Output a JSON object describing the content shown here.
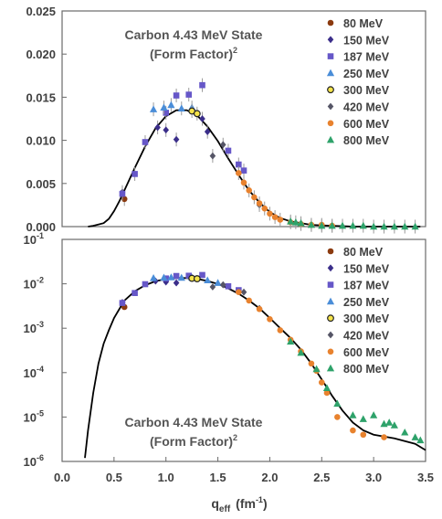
{
  "chart_data": [
    {
      "type": "scatter",
      "title_line1": "Carbon 4.43 MeV State",
      "title_line2": "(Form Factor)",
      "title_sup": "2",
      "yscale": "linear",
      "xlim": [
        0.0,
        3.5
      ],
      "ylim": [
        0.0,
        0.025
      ],
      "ytick_labels": [
        "0.000",
        "0.005",
        "0.010",
        "0.015",
        "0.020",
        "0.025"
      ],
      "legend_position": "top-right",
      "series": [
        {
          "name": "80 MeV",
          "color": "#8B3A0F",
          "marker": "circle",
          "points": [
            [
              0.6,
              0.0032
            ]
          ]
        },
        {
          "name": "150 MeV",
          "color": "#3B2E8A",
          "marker": "diamond",
          "points": [
            [
              0.58,
              0.004
            ],
            [
              0.92,
              0.0115
            ],
            [
              1.0,
              0.0112
            ],
            [
              1.1,
              0.0101
            ],
            [
              1.35,
              0.0125
            ],
            [
              1.4,
              0.011
            ]
          ]
        },
        {
          "name": "187 MeV",
          "color": "#6657C8",
          "marker": "square",
          "points": [
            [
              0.58,
              0.0038
            ],
            [
              0.7,
              0.0061
            ],
            [
              0.8,
              0.0098
            ],
            [
              1.0,
              0.0132
            ],
            [
              1.1,
              0.0152
            ],
            [
              1.22,
              0.0153
            ],
            [
              1.35,
              0.0164
            ],
            [
              1.6,
              0.0088
            ],
            [
              1.7,
              0.0072
            ],
            [
              1.75,
              0.0065
            ]
          ]
        },
        {
          "name": "250 MeV",
          "color": "#4A8DD8",
          "marker": "triangle",
          "points": [
            [
              0.88,
              0.0136
            ],
            [
              0.98,
              0.0138
            ],
            [
              1.05,
              0.0141
            ],
            [
              1.15,
              0.0137
            ],
            [
              1.25,
              0.0138
            ]
          ]
        },
        {
          "name": "300 MeV",
          "color": "#2A2A2A",
          "marker": "circle-yellow",
          "points": [
            [
              1.25,
              0.0134
            ],
            [
              1.3,
              0.0131
            ]
          ]
        },
        {
          "name": "420 MeV",
          "color": "#555566",
          "marker": "diamond",
          "points": [
            [
              1.45,
              0.0082
            ],
            [
              1.55,
              0.0095
            ],
            [
              1.9,
              0.0025
            ]
          ]
        },
        {
          "name": "600 MeV",
          "color": "#E8822E",
          "marker": "circle",
          "points": [
            [
              1.7,
              0.0062
            ],
            [
              1.75,
              0.0051
            ],
            [
              1.8,
              0.0042
            ],
            [
              1.85,
              0.0034
            ],
            [
              1.9,
              0.0027
            ],
            [
              1.95,
              0.0021
            ],
            [
              2.0,
              0.0015
            ],
            [
              2.05,
              0.0011
            ],
            [
              2.1,
              0.0008
            ],
            [
              2.2,
              0.0005
            ],
            [
              2.3,
              0.0003
            ],
            [
              2.4,
              0.0002
            ],
            [
              2.5,
              0.0002
            ],
            [
              2.6,
              0.0001
            ]
          ]
        },
        {
          "name": "800 MeV",
          "color": "#2EA26A",
          "marker": "triangle",
          "points": [
            [
              2.2,
              0.0006
            ],
            [
              2.25,
              0.0005
            ],
            [
              2.3,
              0.0004
            ],
            [
              2.4,
              0.0002
            ],
            [
              2.5,
              0.0001
            ],
            [
              2.6,
              0.0001
            ],
            [
              2.7,
              0.0001
            ],
            [
              2.8,
              0.0001
            ],
            [
              2.9,
              0.0001
            ],
            [
              3.0,
              0.0
            ],
            [
              3.1,
              0.0
            ],
            [
              3.2,
              0.0
            ],
            [
              3.3,
              0.0
            ],
            [
              3.4,
              0.0
            ]
          ]
        }
      ],
      "curve": [
        [
          0.25,
          0.0
        ],
        [
          0.3,
          0.0001
        ],
        [
          0.4,
          0.0004
        ],
        [
          0.45,
          0.0009
        ],
        [
          0.5,
          0.0018
        ],
        [
          0.55,
          0.0029
        ],
        [
          0.6,
          0.0042
        ],
        [
          0.7,
          0.0068
        ],
        [
          0.8,
          0.0093
        ],
        [
          0.9,
          0.0114
        ],
        [
          1.0,
          0.0128
        ],
        [
          1.1,
          0.0135
        ],
        [
          1.2,
          0.0135
        ],
        [
          1.3,
          0.0129
        ],
        [
          1.4,
          0.0116
        ],
        [
          1.5,
          0.0099
        ],
        [
          1.6,
          0.0079
        ],
        [
          1.7,
          0.006
        ],
        [
          1.8,
          0.0042
        ],
        [
          1.9,
          0.0028
        ],
        [
          2.0,
          0.0017
        ],
        [
          2.1,
          0.001
        ],
        [
          2.2,
          0.0006
        ],
        [
          2.4,
          0.0002
        ],
        [
          2.6,
          0.0001
        ],
        [
          2.8,
          0.0
        ],
        [
          3.0,
          0.0
        ],
        [
          3.2,
          0.0
        ],
        [
          3.45,
          0.0
        ]
      ]
    },
    {
      "type": "scatter",
      "title_line1": "Carbon 4.43 MeV State",
      "title_line2": "(Form Factor)",
      "title_sup": "2",
      "yscale": "log",
      "xlim": [
        0.0,
        3.5
      ],
      "ylim": [
        1e-06,
        0.1
      ],
      "ytick_base": "10",
      "ytick_exponents": [
        "-1",
        "-2",
        "-3",
        "-4",
        "-5",
        "-6"
      ],
      "xtick_labels": [
        "0.0",
        "0.5",
        "1.0",
        "1.5",
        "2.0",
        "2.5",
        "3.0",
        "3.5"
      ],
      "xlabel_main": "q",
      "xlabel_sub": "eff",
      "xlabel_unit_open": "(fm",
      "xlabel_unit_sup": "-1",
      "xlabel_unit_close": ")",
      "legend_position": "top-right",
      "series": [
        {
          "name": "80 MeV",
          "color": "#8B3A0F",
          "marker": "circle",
          "points": [
            [
              0.6,
              0.003
            ]
          ]
        },
        {
          "name": "150 MeV",
          "color": "#3B2E8A",
          "marker": "diamond",
          "points": [
            [
              0.58,
              0.0038
            ],
            [
              0.9,
              0.0115
            ],
            [
              1.0,
              0.011
            ],
            [
              1.1,
              0.0105
            ]
          ]
        },
        {
          "name": "187 MeV",
          "color": "#6657C8",
          "marker": "square",
          "points": [
            [
              0.58,
              0.0037
            ],
            [
              0.7,
              0.0062
            ],
            [
              0.8,
              0.0098
            ],
            [
              1.0,
              0.0132
            ],
            [
              1.1,
              0.015
            ],
            [
              1.22,
              0.0152
            ],
            [
              1.35,
              0.0158
            ],
            [
              1.6,
              0.0088
            ],
            [
              1.7,
              0.0072
            ]
          ]
        },
        {
          "name": "250 MeV",
          "color": "#4A8DD8",
          "marker": "triangle",
          "points": [
            [
              0.88,
              0.0135
            ],
            [
              0.98,
              0.0138
            ],
            [
              1.05,
              0.014
            ],
            [
              1.15,
              0.0137
            ],
            [
              1.25,
              0.0138
            ],
            [
              1.4,
              0.012
            ],
            [
              1.5,
              0.0105
            ]
          ]
        },
        {
          "name": "300 MeV",
          "color": "#2A2A2A",
          "marker": "circle-yellow",
          "points": [
            [
              1.25,
              0.0133
            ],
            [
              1.3,
              0.013
            ]
          ]
        },
        {
          "name": "420 MeV",
          "color": "#555566",
          "marker": "diamond",
          "points": [
            [
              1.45,
              0.0085
            ],
            [
              1.55,
              0.0095
            ],
            [
              1.75,
              0.0065
            ],
            [
              1.9,
              0.0028
            ]
          ]
        },
        {
          "name": "600 MeV",
          "color": "#E8822E",
          "marker": "circle",
          "points": [
            [
              1.7,
              0.0065
            ],
            [
              1.8,
              0.0042
            ],
            [
              1.9,
              0.0027
            ],
            [
              2.0,
              0.0016
            ],
            [
              2.1,
              0.0009
            ],
            [
              2.2,
              0.00055
            ],
            [
              2.3,
              0.0003
            ],
            [
              2.4,
              0.00016
            ],
            [
              2.45,
              0.00011
            ],
            [
              2.5,
              6e-05
            ],
            [
              2.55,
              3.5e-05
            ],
            [
              2.65,
              1e-05
            ],
            [
              2.8,
              5e-06
            ],
            [
              2.9,
              4e-06
            ],
            [
              3.1,
              3.5e-06
            ]
          ]
        },
        {
          "name": "800 MeV",
          "color": "#2EA26A",
          "marker": "triangle",
          "points": [
            [
              2.2,
              0.0005
            ],
            [
              2.3,
              0.00028
            ],
            [
              2.45,
              0.00012
            ],
            [
              2.55,
              4.5e-05
            ],
            [
              2.65,
              2e-05
            ],
            [
              2.8,
              1.1e-05
            ],
            [
              2.9,
              9e-06
            ],
            [
              3.0,
              1.1e-05
            ],
            [
              3.1,
              7e-06
            ],
            [
              3.15,
              7.5e-06
            ],
            [
              3.2,
              6.5e-06
            ],
            [
              3.3,
              4.5e-06
            ],
            [
              3.4,
              3.5e-06
            ],
            [
              3.45,
              3e-06
            ]
          ]
        }
      ],
      "curve": [
        [
          0.22,
          1.2e-06
        ],
        [
          0.25,
          5e-06
        ],
        [
          0.3,
          3.5e-05
        ],
        [
          0.35,
          0.00016
        ],
        [
          0.4,
          0.00045
        ],
        [
          0.45,
          0.0009
        ],
        [
          0.5,
          0.0017
        ],
        [
          0.6,
          0.0042
        ],
        [
          0.7,
          0.0068
        ],
        [
          0.8,
          0.0093
        ],
        [
          0.9,
          0.0114
        ],
        [
          1.0,
          0.0128
        ],
        [
          1.1,
          0.0135
        ],
        [
          1.2,
          0.0135
        ],
        [
          1.3,
          0.0129
        ],
        [
          1.4,
          0.0116
        ],
        [
          1.5,
          0.0099
        ],
        [
          1.6,
          0.0079
        ],
        [
          1.7,
          0.006
        ],
        [
          1.8,
          0.0042
        ],
        [
          1.9,
          0.0028
        ],
        [
          2.0,
          0.0017
        ],
        [
          2.1,
          0.001
        ],
        [
          2.2,
          0.0006
        ],
        [
          2.3,
          0.00033
        ],
        [
          2.4,
          0.00016
        ],
        [
          2.5,
          7e-05
        ],
        [
          2.6,
          3e-05
        ],
        [
          2.7,
          1.4e-05
        ],
        [
          2.8,
          7.5e-06
        ],
        [
          2.9,
          5e-06
        ],
        [
          3.0,
          4e-06
        ],
        [
          3.2,
          3.3e-06
        ],
        [
          3.4,
          2.5e-06
        ],
        [
          3.5,
          1.8e-06
        ]
      ]
    }
  ]
}
